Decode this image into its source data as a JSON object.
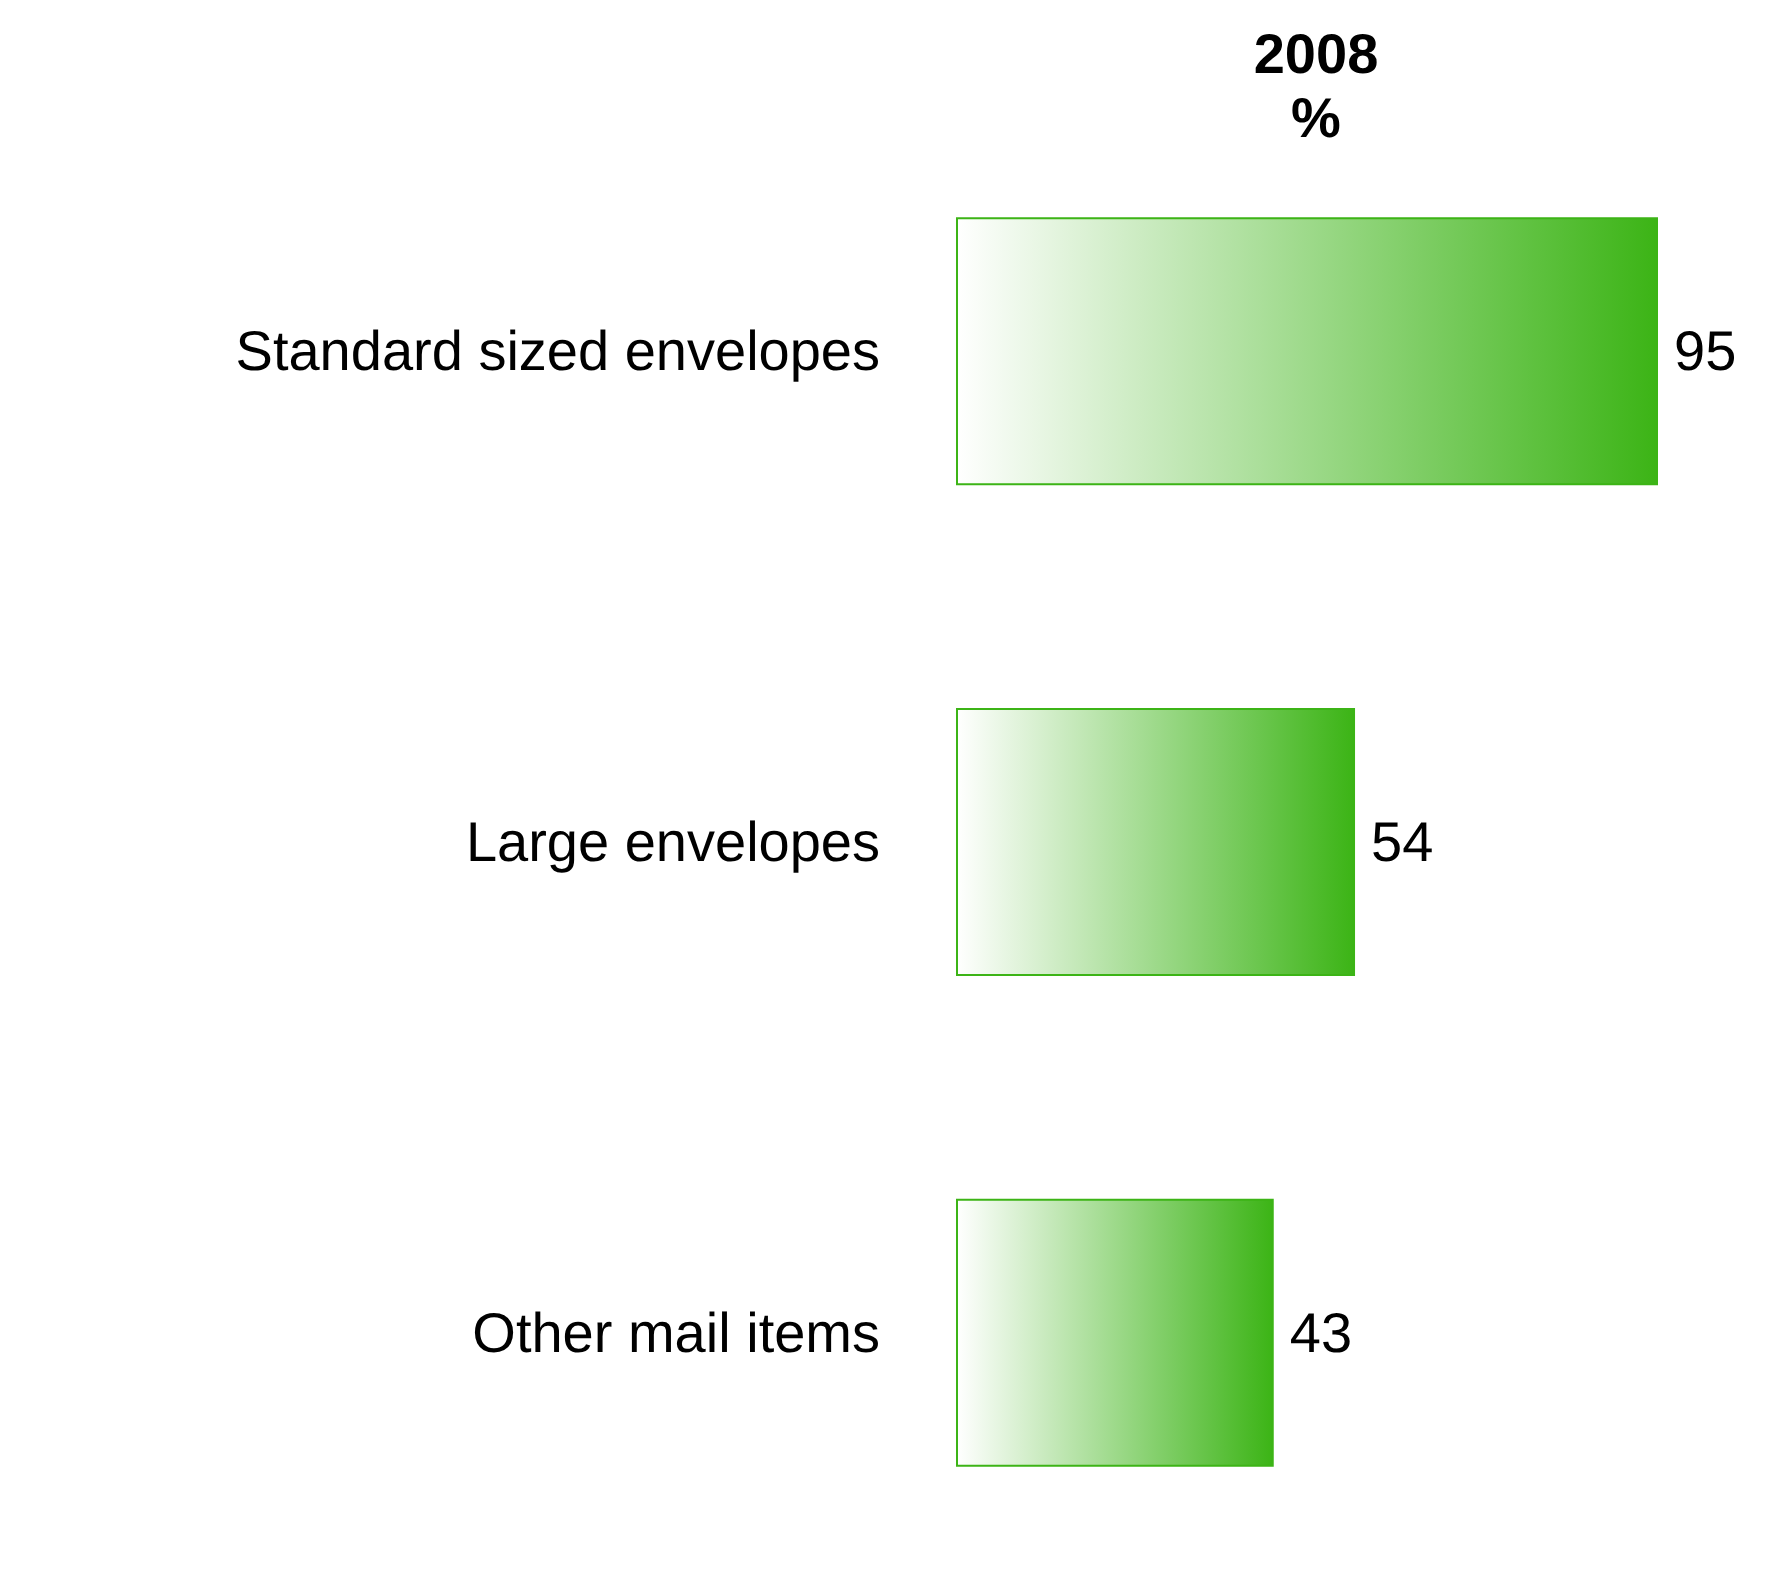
{
  "chart_data": {
    "type": "bar",
    "orientation": "horizontal",
    "title": "2008",
    "subtitle": "%",
    "categories": [
      "Standard sized envelopes",
      "Large envelopes",
      "Other mail items"
    ],
    "values": [
      95,
      54,
      43
    ],
    "color": "#3cb416",
    "data_labels": true,
    "grid": false
  }
}
